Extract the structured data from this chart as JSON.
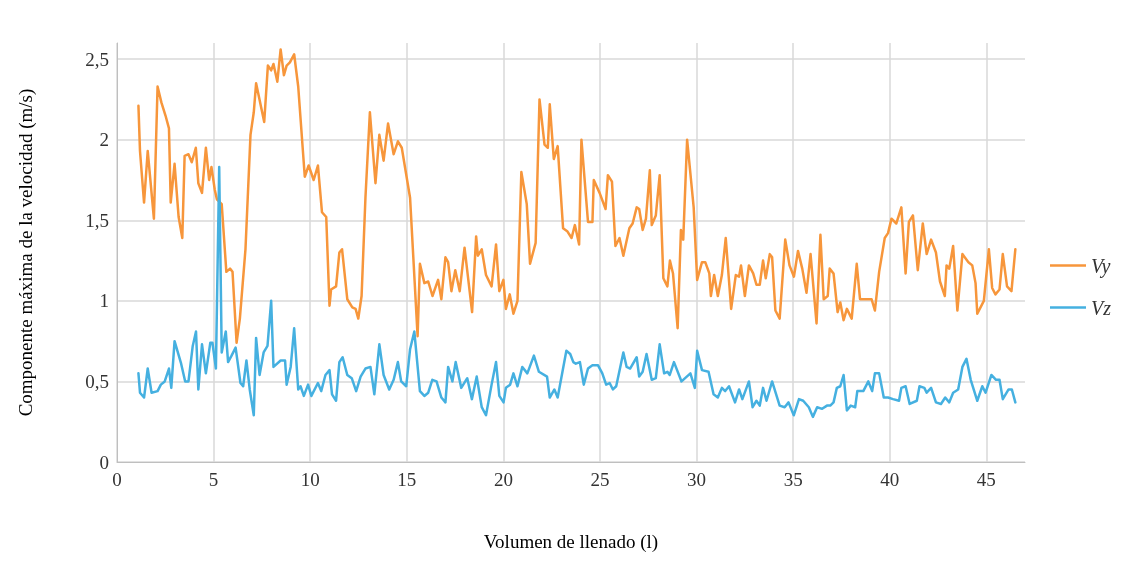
{
  "chart_data": {
    "type": "line",
    "xlabel": "Volumen de llenado (l)",
    "ylabel": "Componente máxima de la velocidad (m/s)",
    "xlim": [
      0,
      47
    ],
    "xticks": [
      0,
      5,
      10,
      15,
      20,
      25,
      30,
      35,
      40,
      45
    ],
    "ylim": [
      0,
      2.6
    ],
    "yticks": [
      0,
      {
        "value": 0.5,
        "label": "0,5"
      },
      1,
      {
        "value": 1.5,
        "label": "1,5"
      },
      2,
      {
        "value": 2.5,
        "label": "2,5"
      }
    ],
    "grid": true,
    "legend": "right",
    "marker": "none",
    "line_style": "solid",
    "series": [
      {
        "name": "Vy",
        "color": "#f7963b",
        "x": [
          1.11,
          1.19,
          1.4,
          1.59,
          1.91,
          2.1,
          2.3,
          2.51,
          2.69,
          2.78,
          2.98,
          3.19,
          3.38,
          3.5,
          3.7,
          3.87,
          4.08,
          4.21,
          4.4,
          4.6,
          4.77,
          4.89,
          5.06,
          5.17,
          5.42,
          5.66,
          5.85,
          5.98,
          6.19,
          6.36,
          6.65,
          6.91,
          7.08,
          7.2,
          7.62,
          7.81,
          7.98,
          8.1,
          8.3,
          8.47,
          8.64,
          8.78,
          8.95,
          9.17,
          9.38,
          9.72,
          9.92,
          10.18,
          10.4,
          10.61,
          10.83,
          11.0,
          11.08,
          11.34,
          11.51,
          11.65,
          11.92,
          12.18,
          12.35,
          12.49,
          12.66,
          12.86,
          13.09,
          13.38,
          13.58,
          13.8,
          14.03,
          14.32,
          14.54,
          14.74,
          15.17,
          15.56,
          15.68,
          15.91,
          16.11,
          16.33,
          16.62,
          16.79,
          17.0,
          17.14,
          17.31,
          17.51,
          17.74,
          17.99,
          18.38,
          18.59,
          18.68,
          18.88,
          19.1,
          19.39,
          19.62,
          19.79,
          20.0,
          20.13,
          20.33,
          20.52,
          20.73,
          20.93,
          21.21,
          21.38,
          21.67,
          21.87,
          22.13,
          22.3,
          22.4,
          22.61,
          22.81,
          23.09,
          23.32,
          23.53,
          23.7,
          23.92,
          24.04,
          24.38,
          24.61,
          24.68,
          24.98,
          25.29,
          25.41,
          25.62,
          25.8,
          26.01,
          26.21,
          26.52,
          26.69,
          26.9,
          27.03,
          27.21,
          27.38,
          27.58,
          27.68,
          27.89,
          28.09,
          28.28,
          28.49,
          28.62,
          28.78,
          29.02,
          29.19,
          29.31,
          29.51,
          29.85,
          30.03,
          30.28,
          30.45,
          30.66,
          30.74,
          30.91,
          31.1,
          31.31,
          31.51,
          31.79,
          32.03,
          32.2,
          32.3,
          32.5,
          32.71,
          32.93,
          33.1,
          33.27,
          33.44,
          33.58,
          33.79,
          33.91,
          34.08,
          34.3,
          34.59,
          34.81,
          35.04,
          35.25,
          35.47,
          35.69,
          35.9,
          36.21,
          36.41,
          36.58,
          36.79,
          36.89,
          37.09,
          37.3,
          37.44,
          37.61,
          37.78,
          38.03,
          38.29,
          38.46,
          38.72,
          39.06,
          39.23,
          39.45,
          39.74,
          39.91,
          40.09,
          40.34,
          40.6,
          40.82,
          40.99,
          41.2,
          41.45,
          41.71,
          41.91,
          42.14,
          42.39,
          42.6,
          42.85,
          42.94,
          43.08,
          43.28,
          43.5,
          43.76,
          44.07,
          44.27,
          44.44,
          44.53,
          44.87,
          45.13,
          45.3,
          45.47,
          45.68,
          45.85,
          46.07,
          46.3,
          46.5
        ],
        "values": [
          2.21,
          1.93,
          1.61,
          1.93,
          1.51,
          2.33,
          2.23,
          2.15,
          2.07,
          1.61,
          1.85,
          1.52,
          1.39,
          1.9,
          1.91,
          1.86,
          1.95,
          1.73,
          1.67,
          1.95,
          1.75,
          1.83,
          1.69,
          1.63,
          1.6,
          1.18,
          1.2,
          1.18,
          0.74,
          0.89,
          1.32,
          2.03,
          2.17,
          2.35,
          2.11,
          2.46,
          2.43,
          2.47,
          2.36,
          2.56,
          2.4,
          2.46,
          2.48,
          2.53,
          2.33,
          1.77,
          1.84,
          1.75,
          1.84,
          1.55,
          1.52,
          0.97,
          1.07,
          1.09,
          1.3,
          1.32,
          1.01,
          0.96,
          0.95,
          0.89,
          1.03,
          1.64,
          2.17,
          1.73,
          2.03,
          1.87,
          2.1,
          1.91,
          1.99,
          1.95,
          1.64,
          0.78,
          1.23,
          1.11,
          1.12,
          1.03,
          1.13,
          1.01,
          1.27,
          1.24,
          1.06,
          1.19,
          1.06,
          1.33,
          0.93,
          1.4,
          1.28,
          1.32,
          1.16,
          1.09,
          1.35,
          1.06,
          1.13,
          0.95,
          1.04,
          0.92,
          1.0,
          1.8,
          1.6,
          1.23,
          1.36,
          2.25,
          1.97,
          1.95,
          2.22,
          1.88,
          1.96,
          1.45,
          1.43,
          1.39,
          1.47,
          1.35,
          2.0,
          1.49,
          1.49,
          1.75,
          1.67,
          1.57,
          1.78,
          1.74,
          1.34,
          1.39,
          1.28,
          1.45,
          1.48,
          1.58,
          1.57,
          1.44,
          1.51,
          1.81,
          1.47,
          1.53,
          1.78,
          1.14,
          1.09,
          1.25,
          1.17,
          0.83,
          1.44,
          1.38,
          2.0,
          1.58,
          1.13,
          1.24,
          1.24,
          1.17,
          1.03,
          1.16,
          1.03,
          1.16,
          1.39,
          0.95,
          1.16,
          1.15,
          1.22,
          1.03,
          1.22,
          1.17,
          1.1,
          1.1,
          1.25,
          1.14,
          1.29,
          1.27,
          0.94,
          0.89,
          1.38,
          1.22,
          1.15,
          1.31,
          1.2,
          1.05,
          1.29,
          0.86,
          1.41,
          1.01,
          1.03,
          1.2,
          1.17,
          0.93,
          0.99,
          0.88,
          0.95,
          0.89,
          1.23,
          1.01,
          1.01,
          1.01,
          0.94,
          1.18,
          1.39,
          1.42,
          1.51,
          1.48,
          1.58,
          1.17,
          1.49,
          1.53,
          1.19,
          1.48,
          1.29,
          1.38,
          1.3,
          1.12,
          1.03,
          1.22,
          1.2,
          1.34,
          0.94,
          1.29,
          1.24,
          1.22,
          1.11,
          0.92,
          1.0,
          1.32,
          1.08,
          1.04,
          1.07,
          1.29,
          1.09,
          1.06,
          1.32
        ]
      },
      {
        "name": "Vz",
        "color": "#45b0e0",
        "x": [
          1.11,
          1.19,
          1.4,
          1.59,
          1.79,
          2.1,
          2.27,
          2.47,
          2.69,
          2.81,
          2.98,
          3.32,
          3.53,
          3.7,
          3.92,
          4.09,
          4.21,
          4.4,
          4.6,
          4.83,
          4.94,
          5.12,
          5.29,
          5.42,
          5.63,
          5.75,
          5.93,
          6.14,
          6.39,
          6.53,
          6.7,
          6.87,
          7.08,
          7.2,
          7.38,
          7.59,
          7.79,
          7.98,
          8.1,
          8.47,
          8.7,
          8.78,
          8.99,
          9.17,
          9.38,
          9.5,
          9.67,
          9.89,
          10.06,
          10.4,
          10.57,
          10.79,
          11.0,
          11.13,
          11.34,
          11.51,
          11.68,
          11.92,
          12.15,
          12.38,
          12.61,
          12.86,
          13.12,
          13.32,
          13.58,
          13.8,
          14.09,
          14.32,
          14.54,
          14.71,
          14.97,
          15.17,
          15.39,
          15.68,
          15.91,
          16.11,
          16.32,
          16.54,
          16.79,
          17.0,
          17.14,
          17.36,
          17.53,
          17.82,
          18.13,
          18.37,
          18.62,
          18.88,
          19.1,
          19.39,
          19.62,
          19.79,
          20.01,
          20.13,
          20.35,
          20.52,
          20.73,
          20.98,
          21.24,
          21.58,
          21.84,
          22.26,
          22.4,
          22.64,
          22.81,
          23.26,
          23.46,
          23.62,
          23.75,
          23.96,
          24.16,
          24.38,
          24.61,
          24.9,
          25.12,
          25.32,
          25.5,
          25.67,
          25.84,
          26.21,
          26.38,
          26.56,
          26.9,
          27.03,
          27.21,
          27.41,
          27.68,
          27.89,
          28.09,
          28.32,
          28.49,
          28.61,
          28.83,
          29.22,
          29.68,
          29.91,
          30.03,
          30.28,
          30.62,
          30.88,
          31.1,
          31.31,
          31.48,
          31.68,
          31.99,
          32.2,
          32.37,
          32.71,
          32.9,
          33.1,
          33.27,
          33.44,
          33.62,
          33.91,
          34.3,
          34.56,
          34.76,
          35.03,
          35.3,
          35.52,
          35.81,
          36.02,
          36.24,
          36.5,
          36.75,
          36.92,
          37.09,
          37.26,
          37.44,
          37.61,
          37.78,
          37.98,
          38.21,
          38.32,
          38.63,
          38.89,
          39.09,
          39.23,
          39.45,
          39.69,
          39.91,
          40.17,
          40.48,
          40.6,
          40.82,
          41.03,
          41.4,
          41.54,
          41.79,
          41.91,
          42.14,
          42.39,
          42.65,
          42.87,
          43.08,
          43.28,
          43.54,
          43.76,
          43.97,
          44.19,
          44.53,
          44.79,
          44.96,
          45.26,
          45.5,
          45.68,
          45.85,
          46.15,
          46.32,
          46.5
        ],
        "values": [
          0.55,
          0.43,
          0.4,
          0.58,
          0.43,
          0.44,
          0.48,
          0.5,
          0.58,
          0.46,
          0.75,
          0.61,
          0.5,
          0.5,
          0.72,
          0.81,
          0.45,
          0.73,
          0.55,
          0.74,
          0.74,
          0.58,
          1.83,
          0.68,
          0.81,
          0.62,
          0.66,
          0.71,
          0.49,
          0.47,
          0.63,
          0.45,
          0.29,
          0.77,
          0.54,
          0.68,
          0.72,
          1.0,
          0.59,
          0.63,
          0.63,
          0.48,
          0.59,
          0.83,
          0.45,
          0.47,
          0.41,
          0.48,
          0.41,
          0.49,
          0.44,
          0.54,
          0.57,
          0.42,
          0.38,
          0.62,
          0.65,
          0.54,
          0.52,
          0.44,
          0.53,
          0.58,
          0.59,
          0.42,
          0.73,
          0.54,
          0.45,
          0.51,
          0.62,
          0.5,
          0.47,
          0.7,
          0.81,
          0.44,
          0.41,
          0.43,
          0.51,
          0.5,
          0.4,
          0.37,
          0.59,
          0.5,
          0.62,
          0.46,
          0.52,
          0.39,
          0.53,
          0.34,
          0.29,
          0.48,
          0.62,
          0.41,
          0.37,
          0.46,
          0.48,
          0.55,
          0.47,
          0.59,
          0.55,
          0.66,
          0.56,
          0.53,
          0.4,
          0.45,
          0.4,
          0.69,
          0.67,
          0.62,
          0.61,
          0.62,
          0.48,
          0.58,
          0.6,
          0.6,
          0.55,
          0.48,
          0.49,
          0.45,
          0.47,
          0.68,
          0.59,
          0.58,
          0.65,
          0.53,
          0.56,
          0.67,
          0.51,
          0.52,
          0.73,
          0.55,
          0.56,
          0.54,
          0.62,
          0.5,
          0.55,
          0.46,
          0.69,
          0.57,
          0.56,
          0.42,
          0.4,
          0.46,
          0.44,
          0.47,
          0.37,
          0.45,
          0.39,
          0.5,
          0.34,
          0.38,
          0.35,
          0.46,
          0.38,
          0.5,
          0.35,
          0.34,
          0.37,
          0.29,
          0.39,
          0.38,
          0.34,
          0.28,
          0.34,
          0.33,
          0.35,
          0.35,
          0.37,
          0.46,
          0.47,
          0.54,
          0.32,
          0.35,
          0.34,
          0.44,
          0.44,
          0.5,
          0.44,
          0.55,
          0.55,
          0.4,
          0.4,
          0.39,
          0.38,
          0.46,
          0.47,
          0.36,
          0.38,
          0.47,
          0.46,
          0.43,
          0.46,
          0.37,
          0.36,
          0.4,
          0.37,
          0.43,
          0.45,
          0.59,
          0.64,
          0.51,
          0.38,
          0.47,
          0.43,
          0.54,
          0.51,
          0.51,
          0.39,
          0.45,
          0.45,
          0.37
        ]
      }
    ]
  }
}
